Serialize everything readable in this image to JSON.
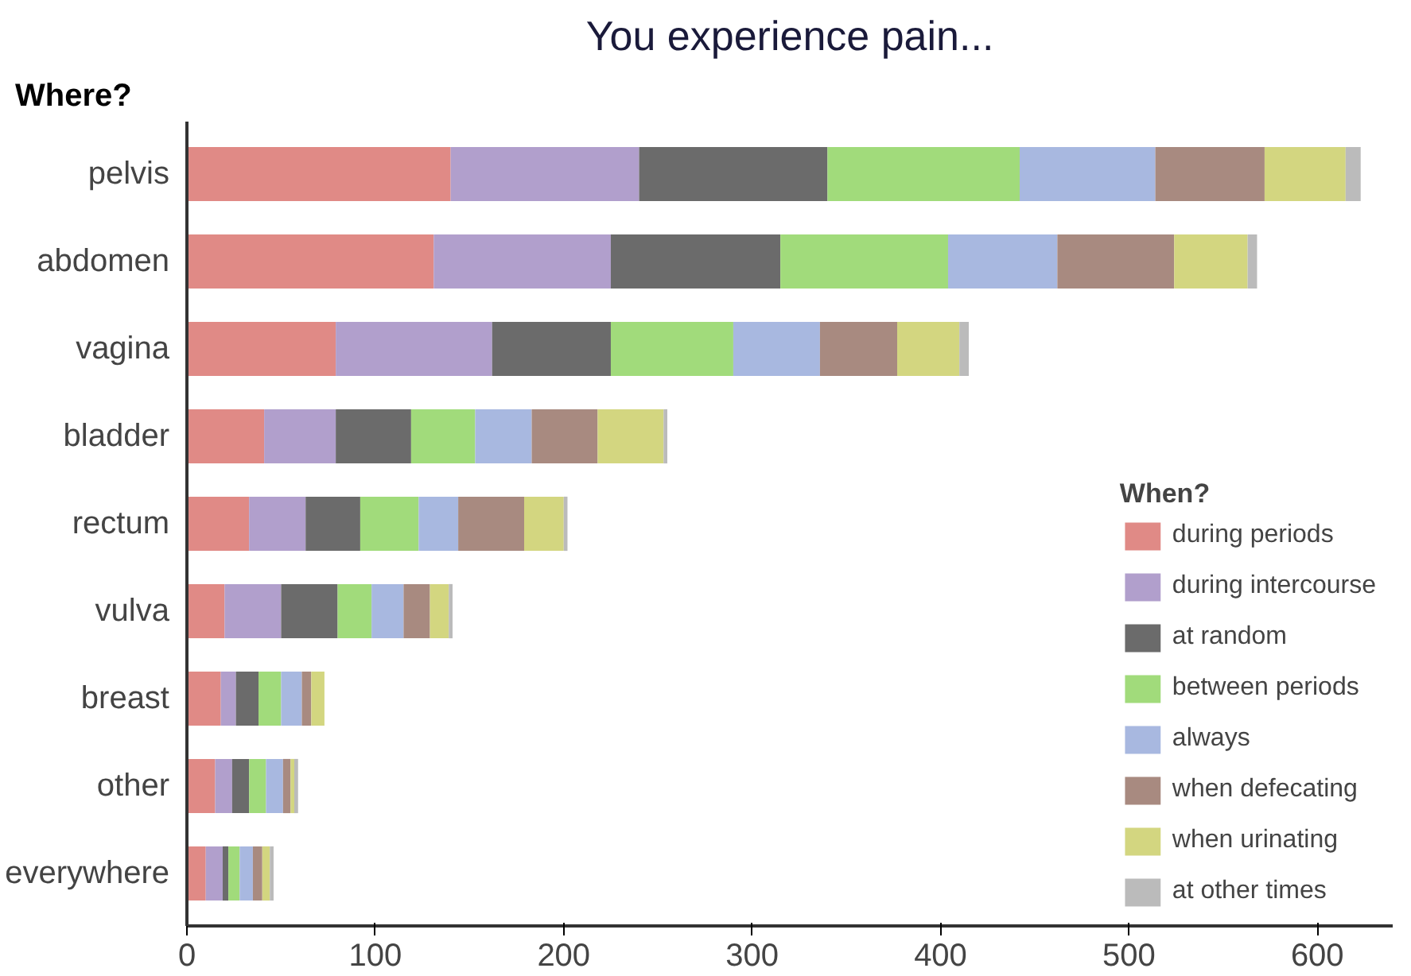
{
  "chart_data": {
    "type": "bar",
    "orientation": "horizontal",
    "stacked": true,
    "title": "You experience pain...",
    "ylabel": "Where?",
    "legend_title": "When?",
    "categories": [
      "pelvis",
      "abdomen",
      "vagina",
      "bladder",
      "rectum",
      "vulva",
      "breast",
      "other",
      "everywhere"
    ],
    "series": [
      {
        "name": "during periods",
        "color": "#e08a86",
        "values": [
          140,
          131,
          79,
          41,
          33,
          20,
          18,
          15,
          10
        ]
      },
      {
        "name": "during intercourse",
        "color": "#b19fcc",
        "values": [
          100,
          94,
          83,
          38,
          30,
          30,
          8,
          9,
          9
        ]
      },
      {
        "name": "at random",
        "color": "#6b6b6b",
        "values": [
          100,
          90,
          63,
          40,
          29,
          30,
          12,
          9,
          3
        ]
      },
      {
        "name": "between periods",
        "color": "#a1db7b",
        "values": [
          102,
          89,
          65,
          34,
          31,
          18,
          12,
          9,
          6
        ]
      },
      {
        "name": "always",
        "color": "#a8b8e0",
        "values": [
          72,
          58,
          46,
          30,
          21,
          17,
          11,
          9,
          7
        ]
      },
      {
        "name": "when defecating",
        "color": "#a88a80",
        "values": [
          58,
          62,
          41,
          35,
          35,
          14,
          5,
          4,
          5
        ]
      },
      {
        "name": "when urinating",
        "color": "#d3d680",
        "values": [
          43,
          39,
          33,
          35,
          21,
          10,
          7,
          2,
          4
        ]
      },
      {
        "name": "at other times",
        "color": "#bbbbbb",
        "values": [
          8,
          5,
          5,
          2,
          2,
          2,
          0,
          2,
          2
        ]
      }
    ],
    "xlim": [
      0,
      640
    ],
    "xticks": [
      0,
      100,
      200,
      300,
      400,
      500,
      600
    ],
    "grid": false,
    "legend": "bottom right"
  }
}
